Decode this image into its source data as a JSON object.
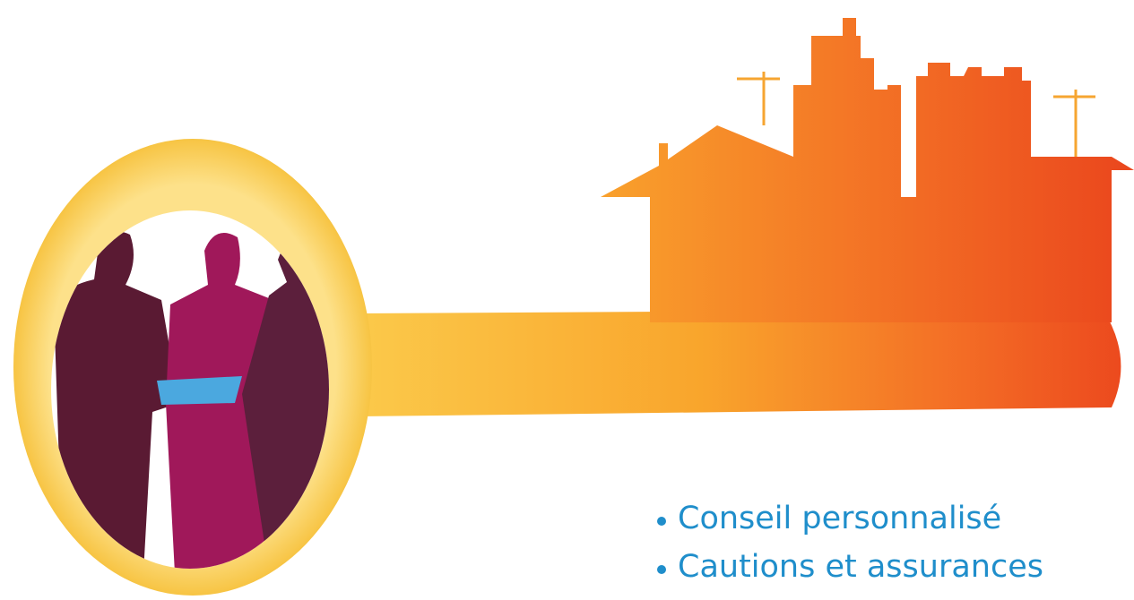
{
  "bullets": [
    "Conseil personnalisé",
    "Cautions et assurances"
  ]
}
